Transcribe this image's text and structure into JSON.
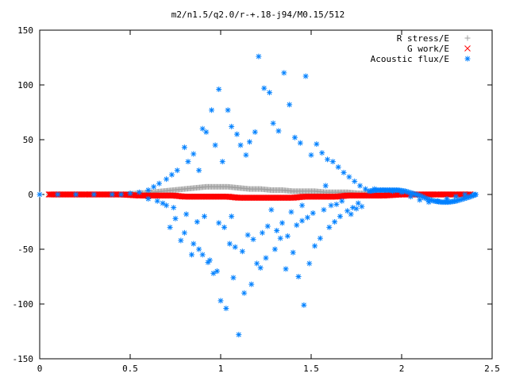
{
  "chart_data": {
    "type": "scatter",
    "title": "m2/n1.5/q2.0/r-+.18-j94/M0.15/512",
    "xlabel": "",
    "ylabel": "",
    "xlim": [
      0,
      2.5
    ],
    "ylim": [
      -150,
      150
    ],
    "x_ticks": [
      "0",
      "0.5",
      "1",
      "1.5",
      "2",
      "2.5"
    ],
    "y_ticks": [
      "150",
      "100",
      "50",
      "0",
      "-50",
      "-100",
      "-150"
    ],
    "grid": false,
    "legend_position": "top-right",
    "series": [
      {
        "name": "R stress/E",
        "color": "#a0a0a0",
        "marker": "+",
        "x": [
          0.05,
          0.25,
          0.45,
          0.55,
          0.62,
          0.68,
          0.74,
          0.8,
          0.86,
          0.92,
          0.98,
          1.04,
          1.1,
          1.16,
          1.22,
          1.28,
          1.34,
          1.4,
          1.46,
          1.52,
          1.58,
          1.64,
          1.7,
          1.76,
          1.82,
          1.9,
          2.0,
          2.1,
          2.2,
          2.3,
          2.38
        ],
        "y": [
          0,
          0,
          0,
          1,
          2,
          3,
          4,
          5,
          6,
          7,
          7,
          7,
          6,
          5,
          5,
          4,
          4,
          3,
          3,
          3,
          2,
          2,
          2,
          1,
          1,
          1,
          0,
          0,
          0,
          0,
          0
        ]
      },
      {
        "name": "G work/E",
        "color": "#ff0000",
        "marker": "x",
        "x": [
          0.05,
          0.25,
          0.45,
          0.55,
          0.62,
          0.68,
          0.74,
          0.8,
          0.86,
          0.92,
          0.98,
          1.04,
          1.1,
          1.16,
          1.22,
          1.28,
          1.34,
          1.4,
          1.46,
          1.52,
          1.58,
          1.64,
          1.7,
          1.76,
          1.82,
          1.9,
          2.0,
          2.1,
          2.2,
          2.3,
          2.38
        ],
        "y": [
          0,
          0,
          0,
          -1,
          -1,
          -1,
          -1,
          -2,
          -2,
          -2,
          -2,
          -2,
          -3,
          -3,
          -3,
          -3,
          -3,
          -3,
          -2,
          -2,
          -2,
          -2,
          -1,
          -1,
          -1,
          -1,
          0,
          0,
          0,
          0,
          0
        ]
      },
      {
        "name": "Acoustic flux/E",
        "color": "#0080ff",
        "marker": "*",
        "x": [
          0.0,
          0.1,
          0.2,
          0.3,
          0.4,
          0.45,
          0.5,
          0.55,
          0.6,
          0.63,
          0.66,
          0.7,
          0.73,
          0.76,
          0.8,
          0.82,
          0.85,
          0.88,
          0.9,
          0.92,
          0.95,
          0.97,
          0.99,
          1.01,
          1.04,
          1.06,
          1.09,
          1.11,
          1.14,
          1.16,
          1.19,
          1.21,
          1.24,
          1.27,
          1.29,
          1.32,
          1.35,
          1.38,
          1.41,
          1.44,
          1.47,
          1.5,
          1.53,
          1.56,
          1.59,
          1.62,
          1.65,
          1.68,
          1.71,
          1.74,
          1.77,
          1.8,
          1.85,
          1.9,
          1.95,
          2.0,
          2.05,
          2.1,
          2.15,
          2.2,
          2.25,
          2.3,
          2.35,
          2.4,
          0.7,
          0.75,
          0.8,
          0.85,
          0.9,
          0.94,
          0.96,
          1.0,
          1.03,
          1.07,
          1.1,
          1.13,
          1.17,
          1.2,
          1.22,
          1.25,
          1.3,
          1.33,
          1.36,
          1.4,
          1.43,
          1.46,
          1.49,
          1.52,
          1.55,
          1.6,
          1.63,
          1.66,
          1.7,
          1.73,
          1.76,
          0.72,
          0.78,
          0.84,
          0.88,
          0.93,
          0.98,
          1.02,
          1.05,
          1.08,
          1.12,
          1.15,
          1.18,
          1.23,
          1.26,
          1.31,
          1.34,
          1.37,
          1.42,
          1.45,
          1.48,
          1.51,
          1.57,
          1.61,
          1.64,
          1.67,
          1.72,
          1.75,
          1.78,
          0.6,
          0.65,
          0.68,
          0.74,
          0.81,
          0.87,
          0.91,
          0.99,
          1.06,
          1.28,
          1.39,
          1.45,
          1.58
        ],
        "y": [
          0,
          0,
          0,
          0,
          0,
          0,
          1,
          2,
          4,
          7,
          10,
          14,
          18,
          22,
          43,
          30,
          37,
          22,
          60,
          57,
          77,
          45,
          96,
          30,
          77,
          62,
          55,
          45,
          36,
          48,
          57,
          126,
          97,
          93,
          65,
          58,
          111,
          82,
          52,
          47,
          108,
          36,
          46,
          38,
          32,
          30,
          25,
          20,
          16,
          12,
          8,
          5,
          5,
          4,
          3,
          2,
          -2,
          -5,
          -7,
          -6,
          -4,
          -2,
          0,
          0,
          -10,
          -22,
          -35,
          -45,
          -55,
          -60,
          -72,
          -97,
          -104,
          -76,
          -128,
          -90,
          -82,
          -63,
          -67,
          -58,
          -50,
          -40,
          -68,
          -53,
          -75,
          -101,
          -63,
          -47,
          -40,
          -30,
          -25,
          -20,
          -15,
          -12,
          -8,
          -30,
          -42,
          -55,
          -50,
          -62,
          -70,
          -30,
          -45,
          -48,
          -52,
          -37,
          -41,
          -35,
          -29,
          -33,
          -26,
          -38,
          -28,
          -24,
          -21,
          -17,
          -14,
          -10,
          -9,
          -6,
          -18,
          -13,
          -11,
          -4,
          -6,
          -8,
          -12,
          -18,
          -25,
          -20,
          -26,
          -20,
          -14,
          -16,
          -10,
          8
        ],
        "trace_x": [
          1.82,
          1.86,
          1.9,
          1.94,
          1.98,
          2.02,
          2.06,
          2.1,
          2.14,
          2.18,
          2.22,
          2.26,
          2.3,
          2.34,
          2.38,
          2.41
        ],
        "trace_y": [
          3,
          4,
          4,
          4,
          4,
          3,
          1,
          -1,
          -4,
          -6,
          -7,
          -7,
          -6,
          -4,
          -2,
          0
        ]
      }
    ]
  }
}
